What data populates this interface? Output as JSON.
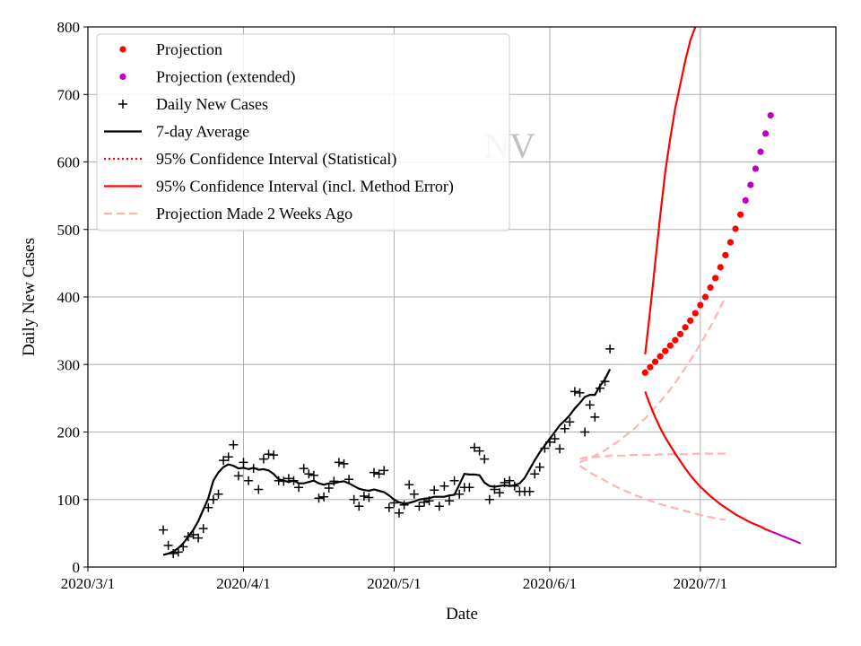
{
  "chart_data": {
    "type": "line",
    "title": "NV",
    "xlabel": "Date",
    "ylabel": "Daily New Cases",
    "xlim": [
      "2020-03-01",
      "2020-07-28"
    ],
    "ylim": [
      0,
      800
    ],
    "grid": true,
    "xticks": [
      {
        "date": "2020-03-01",
        "label": "2020/3/1"
      },
      {
        "date": "2020-04-01",
        "label": "2020/4/1"
      },
      {
        "date": "2020-05-01",
        "label": "2020/5/1"
      },
      {
        "date": "2020-06-01",
        "label": "2020/6/1"
      },
      {
        "date": "2020-07-01",
        "label": "2020/7/1"
      }
    ],
    "yticks": [
      0,
      100,
      200,
      300,
      400,
      500,
      600,
      700,
      800
    ],
    "legend": {
      "placement": "top-left",
      "entries": [
        {
          "label": "Projection",
          "marker": "dot",
          "color": "#ff0000"
        },
        {
          "label": "Projection (extended)",
          "marker": "dot",
          "color": "#bf00bf"
        },
        {
          "label": "Daily New Cases",
          "marker": "plus",
          "color": "#000000"
        },
        {
          "label": "7-day Average",
          "marker": "solid",
          "color": "#000000"
        },
        {
          "label": "95% Confidence Interval (Statistical)",
          "marker": "dotted",
          "color": "#ff0000"
        },
        {
          "label": "95% Confidence Interval (incl. Method Error)",
          "marker": "solid",
          "color": "#ff0000"
        },
        {
          "label": "Projection Made 2 Weeks Ago",
          "marker": "dashed",
          "color": "#ffb3b3"
        }
      ]
    },
    "daily_new_cases": {
      "start_date": "2020-03-16",
      "values": [
        55,
        32,
        20,
        22,
        30,
        45,
        48,
        43,
        57,
        88,
        100,
        108,
        158,
        163,
        181,
        135,
        155,
        128,
        146,
        115,
        160,
        167,
        166,
        128,
        127,
        131,
        128,
        118,
        146,
        138,
        136,
        102,
        104,
        117,
        127,
        155,
        153,
        130,
        100,
        90,
        105,
        103,
        140,
        138,
        143,
        88,
        95,
        80,
        92,
        122,
        108,
        90,
        96,
        98,
        114,
        90,
        120,
        98,
        128,
        108,
        118,
        118,
        177,
        172,
        160,
        100,
        115,
        110,
        125,
        128,
        120,
        112,
        112,
        112,
        138,
        148,
        176,
        185,
        190,
        175,
        205,
        215,
        260,
        258,
        200,
        240,
        222,
        265,
        275,
        323
      ]
    },
    "seven_day_average": {
      "start_date": "2020-03-16",
      "values": [
        18,
        20,
        23,
        28,
        35,
        45,
        55,
        68,
        85,
        102,
        128,
        140,
        148,
        152,
        150,
        146,
        147,
        145,
        147,
        144,
        145,
        143,
        138,
        130,
        128,
        126,
        128,
        124,
        124,
        126,
        128,
        124,
        122,
        124,
        124,
        126,
        127,
        124,
        120,
        116,
        114,
        113,
        115,
        113,
        111,
        106,
        100,
        96,
        94,
        95,
        97,
        100,
        101,
        102,
        104,
        104,
        104,
        106,
        107,
        122,
        138,
        137,
        137,
        136,
        125,
        120,
        119,
        120,
        121,
        120,
        121,
        124,
        132,
        145,
        158,
        170,
        180,
        190,
        200,
        210,
        217,
        225,
        235,
        243,
        252,
        255,
        255,
        268,
        278,
        293
      ]
    },
    "projection": {
      "start_date": "2020-06-20",
      "values": [
        288,
        296,
        304,
        312,
        320,
        328,
        336,
        345,
        355,
        365,
        376,
        388,
        400,
        414,
        428,
        444,
        462,
        481,
        501,
        522
      ]
    },
    "projection_extended": {
      "start_date": "2020-07-10",
      "values": [
        543,
        566,
        590,
        615,
        642,
        669
      ]
    },
    "ci_method_upper": {
      "start_date": "2020-06-20",
      "end_date": "2020-06-30",
      "values": [
        315,
        380,
        450,
        520,
        585,
        635,
        680,
        715,
        750,
        780,
        800
      ]
    },
    "ci_method_lower": {
      "start_date": "2020-06-20",
      "end_date": "2020-07-15",
      "values": [
        260,
        240,
        222,
        206,
        192,
        180,
        168,
        157,
        146,
        136,
        127,
        119,
        112,
        105,
        99,
        93,
        88,
        83,
        78,
        74,
        70,
        66,
        63,
        60,
        56,
        53
      ]
    },
    "projection_2_weeks_ago": {
      "start_date": "2020-06-07",
      "end_date": "2020-07-06",
      "center": [
        155,
        158,
        161,
        165,
        169,
        173,
        178,
        183,
        188,
        194,
        200,
        206,
        213,
        220,
        228,
        236,
        245,
        254,
        263,
        273,
        284,
        295,
        306,
        318,
        330,
        343,
        356,
        370,
        385,
        400
      ],
      "upper_band": [
        160,
        162,
        163,
        163,
        164,
        164,
        165,
        165,
        165,
        165,
        166,
        166,
        166,
        166,
        166,
        166,
        167,
        167,
        167,
        167,
        167,
        167,
        167,
        168,
        168,
        168,
        168,
        168,
        168,
        168
      ],
      "lower_band": [
        150,
        145,
        140,
        136,
        132,
        128,
        124,
        120,
        116,
        113,
        110,
        106,
        104,
        101,
        98,
        96,
        93,
        91,
        89,
        87,
        85,
        83,
        81,
        79,
        77,
        75,
        74,
        72,
        71,
        70
      ]
    }
  }
}
